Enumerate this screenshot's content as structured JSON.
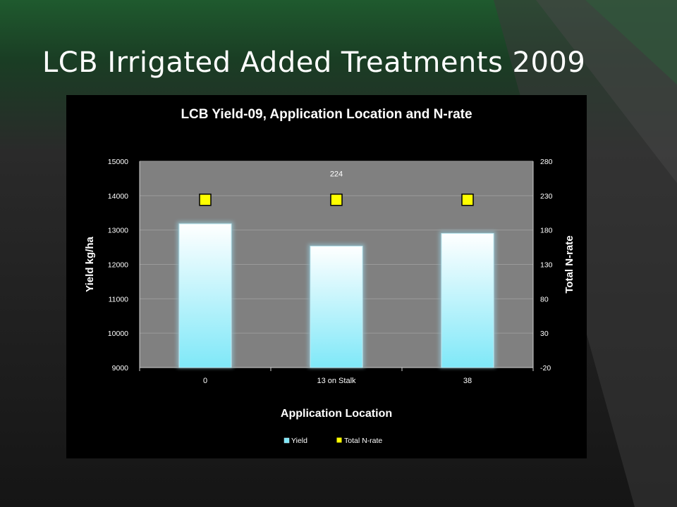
{
  "slide": {
    "title": "LCB Irrigated Added Treatments 2009"
  },
  "colors": {
    "bar_top": "#ffffff",
    "bar_bottom": "#7fe8f8",
    "bar_glow": "#8fb7c2",
    "marker": "#ffff00",
    "plot_bg": "#808080",
    "chart_bg": "#000000"
  },
  "chart_data": {
    "type": "bar",
    "title": "LCB Yield-09, Application Location and N-rate",
    "xlabel": "Application Location",
    "ylabel": "Yield kg/ha",
    "y2label": "Total N-rate",
    "categories": [
      "0",
      "13 on Stalk",
      "38"
    ],
    "series": [
      {
        "name": "Yield",
        "type": "bar",
        "axis": "left",
        "values": [
          13180,
          12530,
          12900
        ]
      },
      {
        "name": "Total N-rate",
        "type": "scatter",
        "axis": "right",
        "values": [
          224,
          224,
          224
        ]
      }
    ],
    "data_labels": [
      {
        "category": "13 on Stalk",
        "series": "Total N-rate",
        "text": "224"
      }
    ],
    "ylim": [
      9000,
      15000
    ],
    "yticks": [
      9000,
      10000,
      11000,
      12000,
      13000,
      14000,
      15000
    ],
    "y2lim": [
      -20,
      280
    ],
    "y2ticks": [
      -20,
      30,
      80,
      130,
      180,
      230,
      280
    ],
    "grid": true,
    "legend": "bottom"
  }
}
